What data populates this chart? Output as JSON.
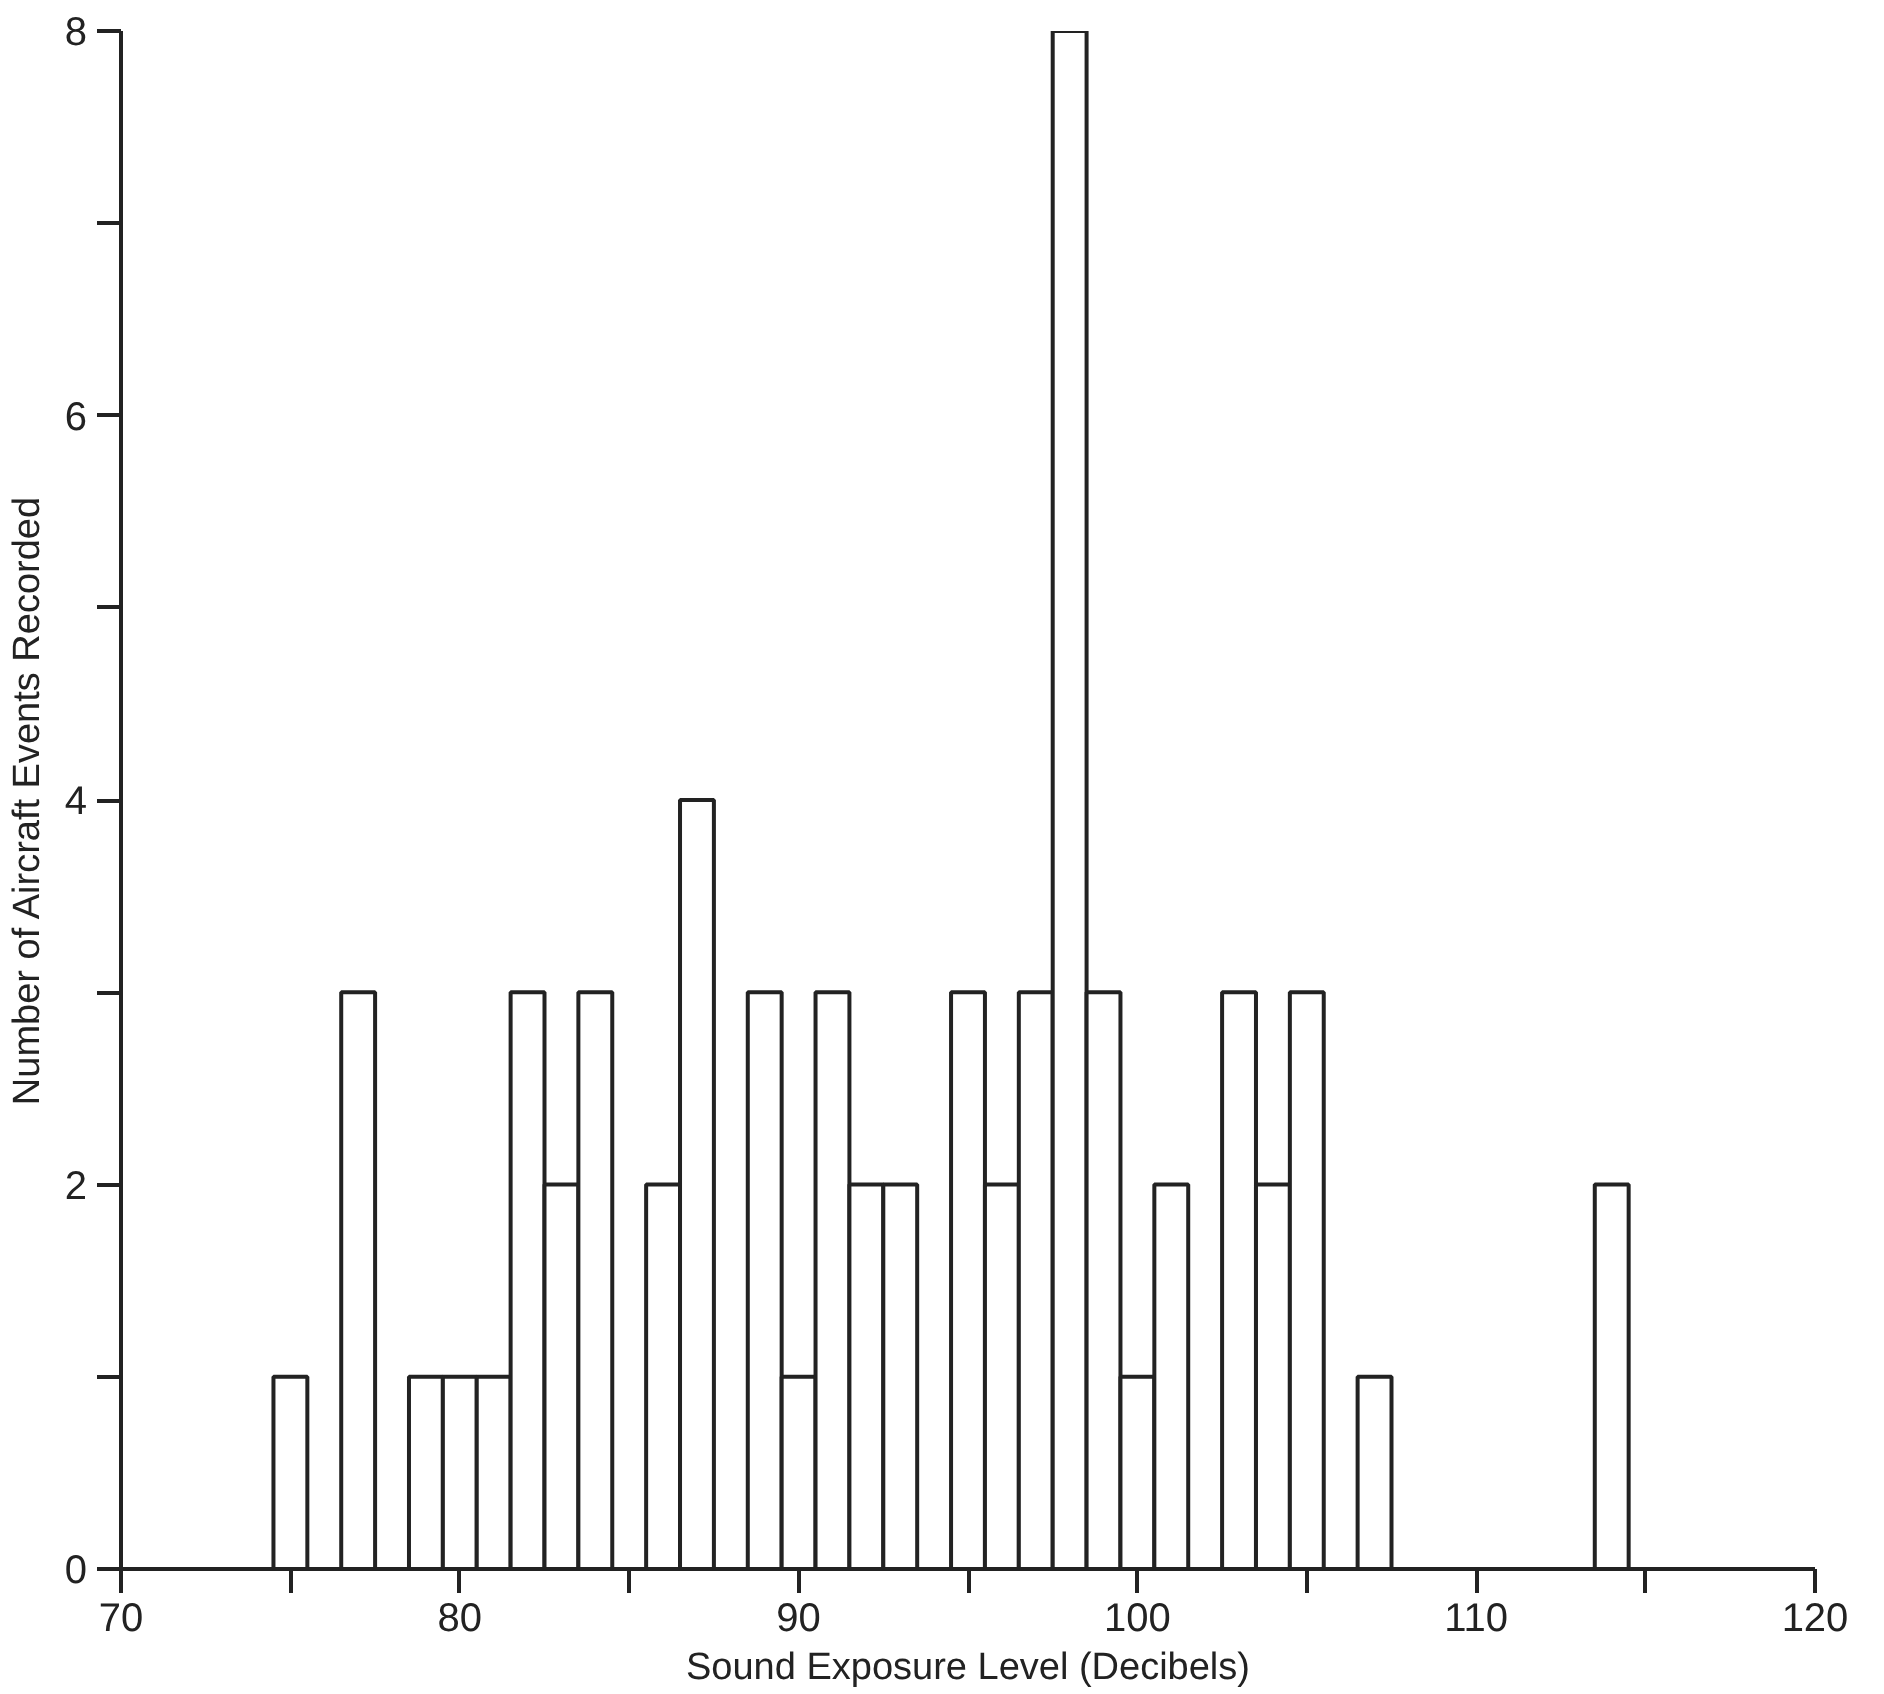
{
  "chart_data": {
    "type": "histogram",
    "xlabel": "Sound Exposure Level (Decibels)",
    "ylabel": "Number of Aircraft Events Recorded",
    "bins": [
      74.5,
      75.5,
      76.5,
      77.5,
      78.5,
      79.5,
      80.5,
      81.5,
      82.5,
      83.5,
      84.5,
      85.5,
      86.5,
      87.5,
      88.5,
      89.5,
      90.5,
      91.5,
      92.5,
      93.5,
      94.5,
      95.5,
      96.5,
      97.5,
      98.5,
      99.5,
      100.5,
      101.5,
      102.5,
      103.5,
      104.5,
      105.5,
      106.5,
      107.5,
      108.5,
      109.5,
      110.5,
      111.5,
      112.5,
      113.5,
      114.5
    ],
    "values": [
      1,
      0,
      3,
      0,
      1,
      1,
      1,
      3,
      2,
      3,
      0,
      2,
      4,
      0,
      3,
      1,
      3,
      2,
      2,
      0,
      3,
      2,
      3,
      8,
      3,
      1,
      2,
      0,
      3,
      2,
      3,
      0,
      1,
      0,
      0,
      0,
      0,
      0,
      0,
      2
    ],
    "color": "#ffffff",
    "xlim": [
      70,
      120
    ],
    "xticks": [
      70,
      {
        "value": 75,
        "label": null
      },
      80,
      {
        "value": 85,
        "label": null
      },
      90,
      {
        "value": 95,
        "label": null
      },
      100,
      {
        "value": 105,
        "label": null
      },
      110,
      {
        "value": 115,
        "label": null
      },
      120
    ],
    "ylim": [
      0,
      8
    ],
    "yticks": [
      0,
      {
        "value": 1,
        "label": null
      },
      2,
      {
        "value": 3,
        "label": null
      },
      4,
      {
        "value": 5,
        "label": null
      },
      6,
      {
        "value": 7,
        "label": null
      },
      8
    ],
    "grid": false
  }
}
